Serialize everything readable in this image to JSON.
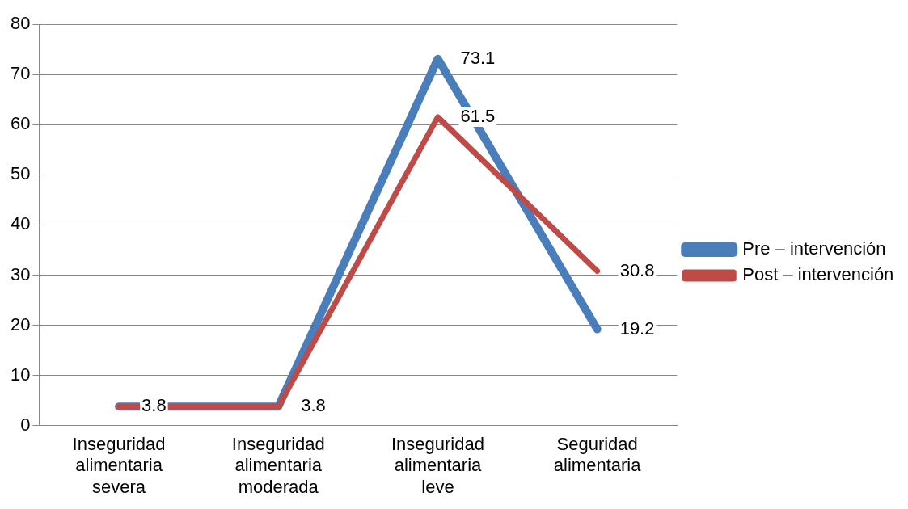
{
  "chart_data": {
    "type": "line",
    "categories": [
      "Inseguridad alimentaria severa",
      "Inseguridad alimentaria moderada",
      "Inseguridad alimentaria leve",
      "Seguridad alimentaria"
    ],
    "series": [
      {
        "name": "Pre – intervención",
        "color": "#4a7ebb",
        "values": [
          3.8,
          3.8,
          73.1,
          19.2
        ],
        "value_labels": [
          "3.8",
          "3.8",
          "73.1",
          "19.2"
        ]
      },
      {
        "name": "Post – intervención",
        "color": "#be4b48",
        "values": [
          3.8,
          3.8,
          61.5,
          30.8
        ],
        "value_labels": [
          null,
          null,
          "61.5",
          "30.8"
        ]
      }
    ],
    "ylim": [
      0,
      80
    ],
    "yticks": [
      0,
      10,
      20,
      30,
      40,
      50,
      60,
      70,
      80
    ],
    "grid": "y",
    "legend": "right"
  }
}
